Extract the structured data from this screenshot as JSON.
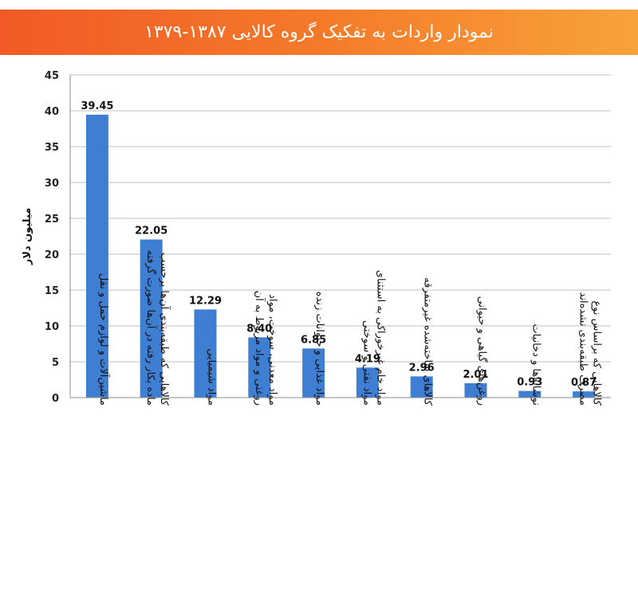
{
  "title": "نمودار واردات به تفکیک گروه کالایی ۱۳۸۷-۱۳۷۹",
  "colors": {
    "title_bar": "#f15a24",
    "bar": "#3f7fd3",
    "grid": "#bfbfbf"
  },
  "chart_data": {
    "type": "bar",
    "title": "نمودار واردات به تفکیک گروه کالایی ۱۳۸۷-۱۳۷۹",
    "ylabel": "میلیون دلار",
    "xlabel": "",
    "ylim": [
      0,
      45
    ],
    "yticks": [
      0,
      5,
      10,
      15,
      20,
      25,
      30,
      35,
      40,
      45
    ],
    "grid": true,
    "categories": [
      [
        "ماشین‌آلات و لوازم حمل و نقل"
      ],
      [
        "کالاهایی که طبقه‌بندی آن‌ها برحسب",
        "ماده بکار رفته در آن‌ها صورت گرفته"
      ],
      [
        "مواد شیمیایی"
      ],
      [
        "مواد معدنی، سوخت، مواد",
        "روغنی و مواد مربوط به آن"
      ],
      [
        "مواد غذایی و حیوانات زنده"
      ],
      [
        "مواد خام غیرخوراکی به استثنای",
        "مواد نفتی و سوختی"
      ],
      [
        "کالاهای ساخته‌شده غیرمتفرقه"
      ],
      [
        "روغن‌های گیاهی و حیوانی"
      ],
      [
        "نوشابه‌ها و دخانیات"
      ],
      [
        "کالاهایی که براساس نوع",
        "مصرف طبقه‌بندی نشده‌اند"
      ]
    ],
    "values": [
      39.45,
      22.05,
      12.29,
      8.4,
      6.85,
      4.19,
      2.96,
      2.01,
      0.93,
      0.87
    ],
    "value_labels": [
      "39.45",
      "22.05",
      "12.29",
      "8.40",
      "6.85",
      "4.19",
      "2.96",
      "2.01",
      "0.93",
      "0.87"
    ]
  }
}
